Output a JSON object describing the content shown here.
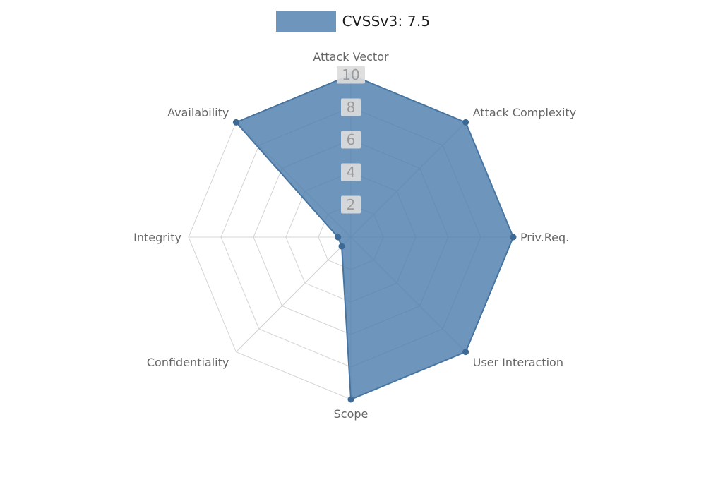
{
  "legend": {
    "label": "CVSSv3: 7.5"
  },
  "chart_data": {
    "type": "radar",
    "title": "CVSSv3: 7.5",
    "categories": [
      "Attack Vector",
      "Attack Complexity",
      "Priv.Req.",
      "User Interaction",
      "Scope",
      "Confidentiality",
      "Integrity",
      "Availability"
    ],
    "series": [
      {
        "name": "CVSSv3: 7.5",
        "values": [
          10,
          10,
          10,
          10,
          10,
          0.8,
          0.8,
          10
        ]
      }
    ],
    "ticks": [
      2,
      4,
      6,
      8,
      10
    ],
    "rmax": 10,
    "grid": true,
    "legend_position": "top",
    "colors": {
      "fill": "#4a7aab",
      "fill_opacity": 0.8,
      "stroke": "#47759f",
      "marker": "#3d6a94",
      "grid_line": "#d4d4d4",
      "tick_text": "#9a9a9a",
      "tick_box": "#dcdcdc",
      "axis_label": "#666666",
      "legend_text": "#1a1a1a"
    }
  }
}
